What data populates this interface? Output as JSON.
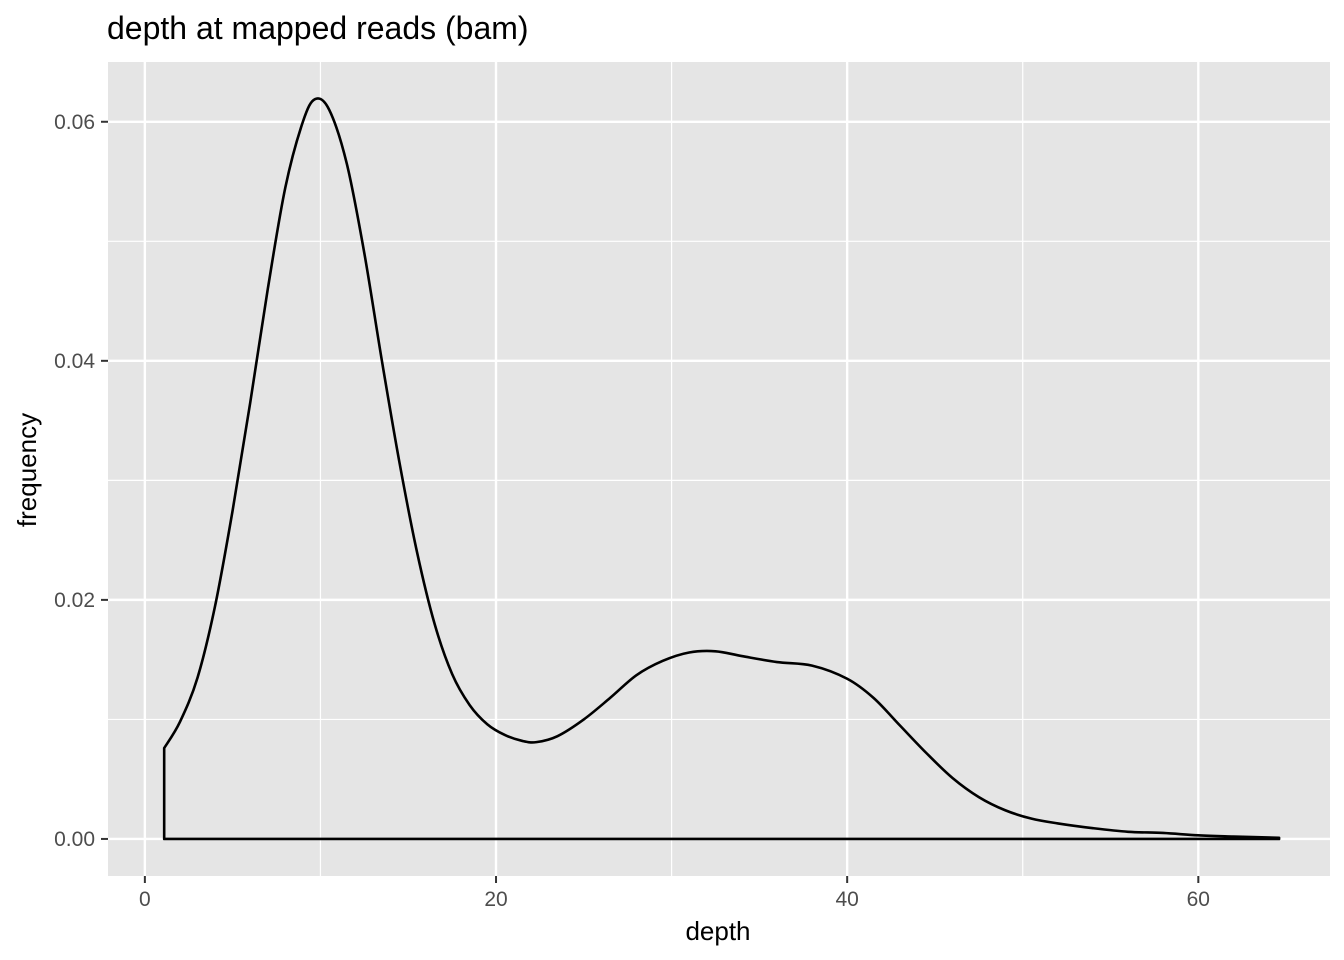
{
  "chart_data": {
    "type": "area",
    "title": "depth at mapped reads (bam)",
    "xlabel": "depth",
    "ylabel": "frequency",
    "xlim": [
      -2.1,
      67.5
    ],
    "ylim": [
      -0.0031,
      0.065
    ],
    "x_ticks": [
      0,
      20,
      40,
      60
    ],
    "x_tick_labels": [
      "0",
      "20",
      "40",
      "60"
    ],
    "y_ticks": [
      0.0,
      0.02,
      0.04,
      0.06
    ],
    "y_tick_labels": [
      "0.00",
      "0.02",
      "0.04",
      "0.06"
    ],
    "grid": true,
    "legend": "none",
    "colors": {
      "panel_background": "#e5e5e5",
      "grid": "#ffffff",
      "line": "#000000",
      "fill": "none"
    },
    "series": [
      {
        "x": [
          1.1,
          1.1,
          2,
          3,
          4,
          5,
          6,
          7,
          8,
          9,
          9.7,
          10.5,
          11.5,
          12.5,
          13.5,
          14.5,
          15.5,
          16.5,
          17.5,
          18.5,
          19.5,
          20.5,
          21.5,
          22.3,
          23.5,
          25,
          26.5,
          28,
          29.5,
          31,
          32.5,
          34,
          36,
          38,
          40,
          41.5,
          43,
          44.5,
          46,
          47.5,
          49,
          50.5,
          52,
          54,
          56,
          58,
          60,
          62,
          64.6
        ],
        "y": [
          0,
          0.0076,
          0.0098,
          0.0135,
          0.0195,
          0.0275,
          0.0365,
          0.046,
          0.0545,
          0.06,
          0.0619,
          0.061,
          0.0565,
          0.049,
          0.04,
          0.0315,
          0.024,
          0.018,
          0.0138,
          0.0112,
          0.0096,
          0.0087,
          0.0082,
          0.0081,
          0.0086,
          0.01,
          0.0118,
          0.0137,
          0.0149,
          0.0156,
          0.0157,
          0.0153,
          0.0148,
          0.0145,
          0.0134,
          0.0118,
          0.0095,
          0.0072,
          0.0051,
          0.0035,
          0.0024,
          0.0017,
          0.0013,
          0.0009,
          0.0006,
          0.0005,
          0.0003,
          0.0002,
          0.0001
        ]
      }
    ]
  }
}
